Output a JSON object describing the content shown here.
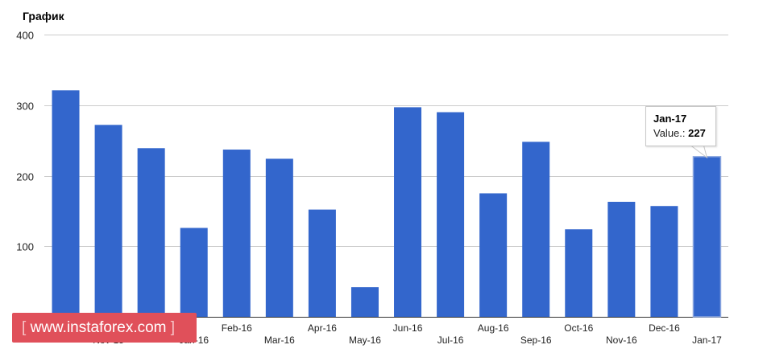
{
  "chart_data": {
    "type": "bar",
    "title": "График",
    "categories": [
      "Oct-15",
      "Nov-15",
      "Dec-15",
      "Jan-16",
      "Feb-16",
      "Mar-16",
      "Apr-16",
      "May-16",
      "Jun-16",
      "Jul-16",
      "Aug-16",
      "Sep-16",
      "Oct-16",
      "Nov-16",
      "Dec-16",
      "Jan-17"
    ],
    "visible_x_tick_labels": [
      "",
      "Nov-15",
      "",
      "Jan-16",
      "Feb-16",
      "Mar-16",
      "Apr-16",
      "May-16",
      "Jun-16",
      "Jul-16",
      "Aug-16",
      "Sep-16",
      "Oct-16",
      "Nov-16",
      "Dec-16",
      "Jan-17"
    ],
    "values": [
      321,
      272,
      239,
      126,
      237,
      224,
      152,
      42,
      297,
      290,
      175,
      248,
      124,
      163,
      157,
      227
    ],
    "ylim": [
      0,
      400
    ],
    "yticks": [
      0,
      100,
      200,
      300,
      400
    ],
    "grid": true,
    "bar_color": "#3366cc",
    "tooltip": {
      "title": "Jan-17",
      "label": "Value.:",
      "value": "227"
    }
  },
  "watermark": {
    "open": "[",
    "text": "www.instaforex.com",
    "close": "]"
  }
}
